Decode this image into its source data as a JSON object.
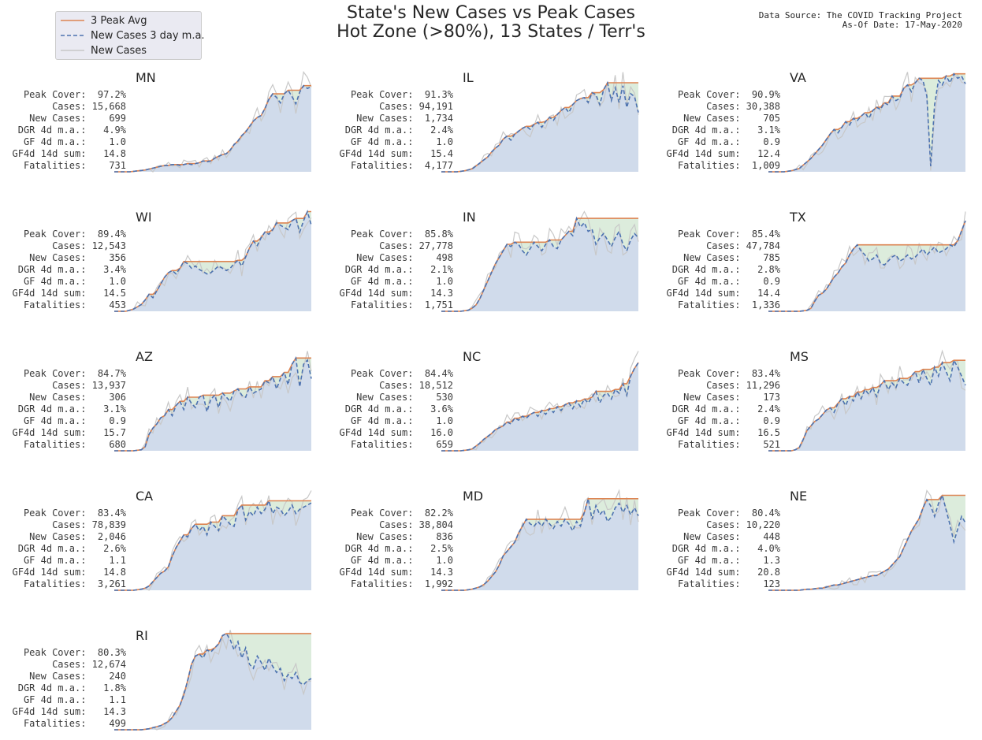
{
  "title_line1": "State's New Cases vs Peak Cases",
  "title_line2": "Hot Zone (>80%), 13 States / Terr's",
  "source_line1": "Data Source: The COVID Tracking Project",
  "source_line2": "As-Of Date: 17-May-2020",
  "legend": [
    {
      "label": "3 Peak Avg",
      "color": "#dd8452",
      "style": "solid"
    },
    {
      "label": "New Cases 3 day m.a.",
      "color": "#4c72b0",
      "style": "dashed"
    },
    {
      "label": "New Cases",
      "color": "#c8c8c8",
      "style": "solid"
    }
  ],
  "colors": {
    "peak": "#dd8452",
    "ma": "#4c72b0",
    "raw": "#c8c8c8",
    "fill_under": "#d0dbeb",
    "fill_gap": "#dcecdc"
  },
  "stat_labels": [
    "Peak Cover:",
    "Cases:",
    "New Cases:",
    "DGR 4d m.a.:",
    "GF 4d m.a.:",
    "GF4d 14d sum:",
    "Fatalities:"
  ],
  "chart_data": {
    "type": "line",
    "x_axis": "days, unlabeled",
    "states": [
      {
        "name": "MN",
        "stats": [
          "97.2%",
          "15,668",
          "699",
          "4.9%",
          "1.0",
          "14.8",
          "731"
        ],
        "ma": [
          0,
          0,
          0,
          0,
          0,
          0.5,
          1,
          1.5,
          2,
          3,
          4,
          5,
          6,
          7,
          7,
          8,
          8,
          7,
          8,
          9,
          8,
          9,
          10,
          12,
          11,
          12,
          15,
          17,
          19,
          20,
          24,
          30,
          34,
          40,
          44,
          50,
          56,
          60,
          62,
          70,
          80,
          86,
          82,
          76,
          86,
          90,
          83,
          75,
          88,
          95,
          92,
          94
        ]
      },
      {
        "name": "IL",
        "stats": [
          "91.3%",
          "94,191",
          "1,734",
          "2.4%",
          "1.0",
          "15.4",
          "4,177"
        ],
        "ma": [
          0,
          0,
          0,
          0,
          0,
          0.5,
          1,
          2,
          3,
          6,
          9,
          12,
          15,
          20,
          24,
          27,
          33,
          36,
          32,
          38,
          41,
          44,
          46,
          43,
          48,
          50,
          45,
          51,
          55,
          52,
          58,
          62,
          65,
          60,
          68,
          72,
          74,
          75,
          70,
          80,
          78,
          68,
          83,
          90,
          72,
          85,
          70,
          87,
          65,
          79,
          76,
          60
        ]
      },
      {
        "name": "VA",
        "stats": [
          "90.9%",
          "30,388",
          "705",
          "3.1%",
          "0.9",
          "12.4",
          "1,009"
        ],
        "ma": [
          0,
          0,
          0,
          0,
          0,
          0.5,
          1,
          2,
          3,
          6,
          9,
          12,
          16,
          20,
          24,
          29,
          34,
          38,
          35,
          40,
          45,
          42,
          48,
          46,
          50,
          53,
          48,
          55,
          58,
          56,
          62,
          60,
          68,
          64,
          66,
          75,
          78,
          72,
          80,
          84,
          82,
          68,
          5,
          60,
          82,
          78,
          86,
          80,
          88,
          84,
          86,
          79
        ]
      },
      {
        "name": "WI",
        "stats": [
          "89.4%",
          "12,543",
          "356",
          "3.4%",
          "1.0",
          "14.5",
          "453"
        ],
        "ma": [
          0,
          0,
          0,
          0,
          1,
          2,
          4,
          6,
          10,
          15,
          12,
          18,
          24,
          30,
          34,
          36,
          33,
          38,
          44,
          42,
          38,
          40,
          37,
          35,
          33,
          34,
          37,
          40,
          38,
          36,
          38,
          42,
          45,
          40,
          48,
          56,
          62,
          58,
          65,
          70,
          68,
          72,
          78,
          76,
          74,
          72,
          80,
          82,
          70,
          80,
          88,
          76
        ]
      },
      {
        "name": "IN",
        "stats": [
          "85.8%",
          "27,778",
          "498",
          "2.1%",
          "1.0",
          "14.3",
          "1,751"
        ],
        "ma": [
          0,
          0,
          0,
          0,
          0,
          0,
          0.5,
          1,
          3,
          6,
          12,
          20,
          28,
          36,
          44,
          50,
          56,
          62,
          60,
          64,
          62,
          56,
          52,
          58,
          64,
          60,
          56,
          62,
          66,
          60,
          58,
          66,
          70,
          74,
          70,
          86,
          78,
          82,
          74,
          76,
          62,
          68,
          72,
          66,
          60,
          68,
          74,
          62,
          56,
          66,
          72,
          68
        ]
      },
      {
        "name": "TX",
        "stats": [
          "85.4%",
          "47,784",
          "785",
          "2.8%",
          "0.9",
          "14.4",
          "1,336"
        ],
        "ma": [
          0,
          0,
          0,
          0,
          0,
          0,
          0,
          0,
          0,
          0.5,
          1,
          3,
          10,
          16,
          18,
          22,
          28,
          34,
          38,
          44,
          48,
          56,
          62,
          66,
          60,
          56,
          50,
          52,
          56,
          48,
          46,
          50,
          54,
          56,
          50,
          52,
          56,
          52,
          54,
          58,
          62,
          56,
          60,
          64,
          58,
          60,
          62,
          66,
          64,
          70,
          80,
          90
        ]
      },
      {
        "name": "AZ",
        "stats": [
          "84.7%",
          "13,937",
          "306",
          "3.1%",
          "0.9",
          "15.7",
          "680"
        ],
        "ma": [
          0,
          0,
          0,
          0,
          0,
          0,
          0.5,
          1,
          4,
          16,
          22,
          26,
          32,
          34,
          40,
          34,
          44,
          48,
          40,
          52,
          46,
          42,
          52,
          54,
          38,
          50,
          54,
          42,
          56,
          52,
          48,
          58,
          60,
          54,
          52,
          62,
          56,
          58,
          60,
          68,
          66,
          72,
          60,
          70,
          76,
          64,
          84,
          90,
          62,
          84,
          88,
          70
        ]
      },
      {
        "name": "NC",
        "stats": [
          "84.4%",
          "18,512",
          "530",
          "3.6%",
          "1.0",
          "16.0",
          "659"
        ],
        "ma": [
          0,
          0,
          0,
          0,
          0,
          0,
          0.5,
          1,
          2,
          5,
          8,
          12,
          15,
          18,
          22,
          24,
          26,
          30,
          28,
          34,
          32,
          36,
          34,
          38,
          40,
          36,
          42,
          38,
          44,
          40,
          46,
          42,
          48,
          50,
          44,
          52,
          46,
          54,
          50,
          56,
          62,
          50,
          58,
          60,
          54,
          64,
          60,
          70,
          58,
          78,
          86,
          92
        ]
      },
      {
        "name": "MS",
        "stats": [
          "83.4%",
          "11,296",
          "173",
          "2.4%",
          "0.9",
          "16.5",
          "521"
        ],
        "ma": [
          0,
          0,
          0,
          0,
          0,
          0,
          0,
          1,
          3,
          10,
          18,
          22,
          26,
          28,
          32,
          36,
          38,
          34,
          42,
          46,
          40,
          48,
          44,
          52,
          46,
          54,
          50,
          56,
          48,
          58,
          62,
          54,
          60,
          56,
          64,
          60,
          58,
          66,
          70,
          60,
          72,
          64,
          58,
          74,
          66,
          78,
          70,
          62,
          80,
          74,
          66,
          58
        ]
      },
      {
        "name": "CA",
        "stats": [
          "83.4%",
          "78,839",
          "2,046",
          "2.6%",
          "1.1",
          "14.8",
          "3,261"
        ],
        "ma": [
          0,
          0,
          0,
          0,
          0,
          0,
          0.5,
          1,
          2,
          4,
          8,
          12,
          16,
          18,
          22,
          32,
          40,
          46,
          52,
          50,
          58,
          62,
          56,
          60,
          52,
          64,
          60,
          56,
          70,
          66,
          62,
          60,
          76,
          80,
          66,
          74,
          70,
          78,
          72,
          76,
          84,
          72,
          78,
          76,
          70,
          74,
          80,
          72,
          76,
          78,
          80,
          82
        ]
      },
      {
        "name": "MD",
        "stats": [
          "82.2%",
          "38,804",
          "836",
          "2.5%",
          "1.0",
          "14.3",
          "1,992"
        ],
        "ma": [
          0,
          0,
          0,
          0,
          0,
          0,
          0,
          0.5,
          1,
          2,
          3,
          5,
          8,
          12,
          16,
          22,
          30,
          34,
          38,
          42,
          50,
          56,
          62,
          58,
          56,
          60,
          56,
          62,
          58,
          54,
          60,
          56,
          62,
          58,
          52,
          60,
          56,
          68,
          80,
          62,
          74,
          66,
          70,
          60,
          64,
          72,
          76,
          68,
          74,
          66,
          72,
          65
        ]
      },
      {
        "name": "NE",
        "stats": [
          "80.4%",
          "10,220",
          "448",
          "4.0%",
          "1.3",
          "20.8",
          "123"
        ],
        "ma": [
          0,
          0,
          0,
          0,
          0,
          0,
          0,
          0,
          0,
          0.5,
          1,
          1,
          1.5,
          2,
          2,
          3,
          4,
          5,
          5,
          6,
          7,
          8,
          9,
          10,
          11,
          12,
          13,
          14,
          14,
          16,
          18,
          20,
          24,
          28,
          32,
          40,
          48,
          56,
          62,
          68,
          78,
          86,
          80,
          70,
          82,
          90,
          76,
          62,
          46,
          58,
          70,
          64
        ]
      },
      {
        "name": "RI",
        "stats": [
          "80.3%",
          "12,674",
          "240",
          "1.8%",
          "1.1",
          "14.3",
          "499"
        ],
        "ma": [
          0,
          0,
          0,
          0,
          0,
          0,
          0,
          0,
          0.5,
          1,
          2,
          3,
          4,
          6,
          8,
          12,
          18,
          24,
          34,
          48,
          64,
          72,
          74,
          70,
          78,
          76,
          80,
          84,
          92,
          94,
          88,
          78,
          86,
          70,
          80,
          64,
          60,
          72,
          66,
          58,
          70,
          62,
          56,
          60,
          48,
          54,
          50,
          56,
          46,
          44,
          48,
          50
        ]
      }
    ]
  }
}
